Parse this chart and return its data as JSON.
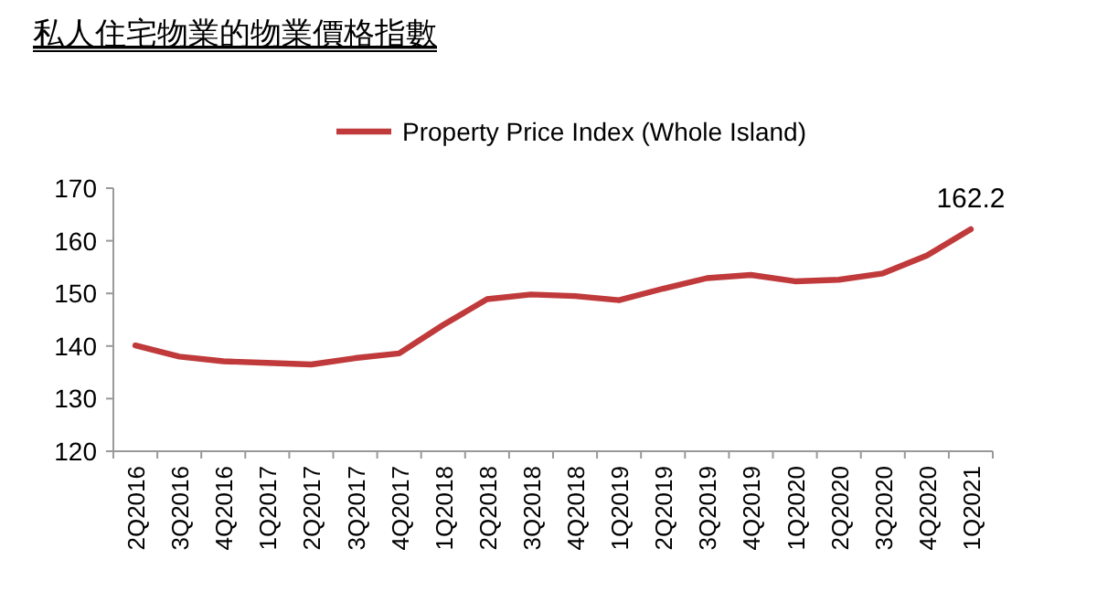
{
  "chart_data": {
    "type": "line",
    "title": "私人住宅物業的物業價格指數",
    "categories": [
      "2Q2016",
      "3Q2016",
      "4Q2016",
      "1Q2017",
      "2Q2017",
      "3Q2017",
      "4Q2017",
      "1Q2018",
      "2Q2018",
      "3Q2018",
      "4Q2018",
      "1Q2019",
      "2Q2019",
      "3Q2019",
      "4Q2019",
      "1Q2020",
      "2Q2020",
      "3Q2020",
      "4Q2020",
      "1Q2021"
    ],
    "series": [
      {
        "name": "Property Price Index (Whole Island)",
        "color": "#c0393b",
        "values": [
          140.1,
          138.0,
          137.1,
          136.8,
          136.5,
          137.7,
          138.6,
          144.0,
          148.9,
          149.8,
          149.5,
          148.7,
          150.9,
          152.9,
          153.5,
          152.3,
          152.6,
          153.8,
          157.2,
          162.2
        ],
        "value_labels": [
          null,
          null,
          null,
          null,
          null,
          null,
          null,
          null,
          null,
          null,
          null,
          null,
          null,
          null,
          null,
          null,
          null,
          null,
          null,
          "162.2"
        ]
      }
    ],
    "ylim": [
      120,
      170
    ],
    "yticks": [
      120,
      130,
      140,
      150,
      160,
      170
    ],
    "grid": false,
    "legend": "top",
    "marker": "none",
    "line_style": "solid"
  }
}
